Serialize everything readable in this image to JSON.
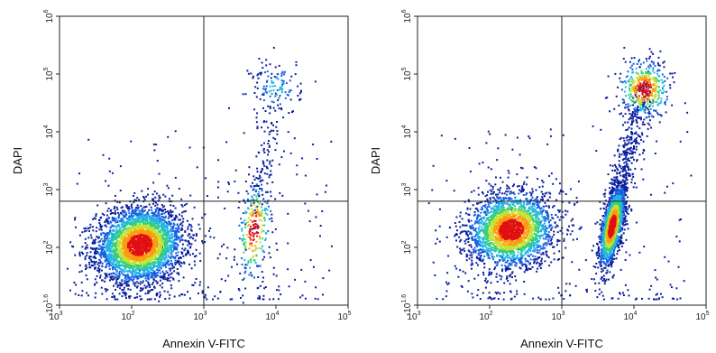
{
  "chart_data": [
    {
      "type": "scatter",
      "subtype": "flow-cytometry-density",
      "xlabel": "Annexin V-FITC",
      "ylabel": "DAPI",
      "x_scale": "log",
      "y_scale": "log",
      "xlim": [
        1000,
        100000
      ],
      "ylim": [
        -39.8,
        1000000
      ],
      "x_ticks": [
        {
          "base": "10",
          "exp": "3"
        },
        {
          "base": "10",
          "exp": "2"
        },
        {
          "base": "10",
          "exp": "3"
        },
        {
          "base": "10",
          "exp": "4"
        },
        {
          "base": "10",
          "exp": "5"
        }
      ],
      "y_ticks": [
        {
          "base": "-10",
          "exp": "1.6"
        },
        {
          "base": "10",
          "exp": "2"
        },
        {
          "base": "10",
          "exp": "3"
        },
        {
          "base": "10",
          "exp": "4"
        },
        {
          "base": "10",
          "exp": "5"
        },
        {
          "base": "10",
          "exp": "6"
        }
      ],
      "quadrant_gate": {
        "x": 1000,
        "y": 630
      },
      "populations": [
        {
          "center_x": 130,
          "center_y": 110,
          "count": 3600,
          "role": "main"
        },
        {
          "center_x": 10000,
          "center_y": 60000,
          "count": 120,
          "role": "upper-right"
        },
        {
          "center_x": 5000,
          "center_y": 200,
          "count": 250,
          "role": "lower-right"
        }
      ],
      "density_colors": [
        "#0a1f9e",
        "#1560e0",
        "#22b4e8",
        "#30d080",
        "#c8e030",
        "#ff9a10",
        "#e01010"
      ]
    },
    {
      "type": "scatter",
      "subtype": "flow-cytometry-density",
      "xlabel": "Annexin V-FITC",
      "ylabel": "DAPI",
      "x_scale": "log",
      "y_scale": "log",
      "xlim": [
        1000,
        100000
      ],
      "ylim": [
        -39.8,
        1000000
      ],
      "x_ticks": [
        {
          "base": "10",
          "exp": "3"
        },
        {
          "base": "10",
          "exp": "2"
        },
        {
          "base": "10",
          "exp": "3"
        },
        {
          "base": "10",
          "exp": "4"
        },
        {
          "base": "10",
          "exp": "5"
        }
      ],
      "y_ticks": [
        {
          "base": "-10",
          "exp": "1.6"
        },
        {
          "base": "10",
          "exp": "2"
        },
        {
          "base": "10",
          "exp": "3"
        },
        {
          "base": "10",
          "exp": "4"
        },
        {
          "base": "10",
          "exp": "5"
        },
        {
          "base": "10",
          "exp": "6"
        }
      ],
      "quadrant_gate": {
        "x": 1000,
        "y": 630
      },
      "populations": [
        {
          "center_x": 200,
          "center_y": 200,
          "count": 2600,
          "role": "main"
        },
        {
          "center_x": 5000,
          "center_y": 230,
          "count": 1700,
          "role": "lower-right"
        },
        {
          "center_x": 14000,
          "center_y": 55000,
          "count": 420,
          "role": "upper-right"
        }
      ],
      "density_colors": [
        "#0a1f9e",
        "#1560e0",
        "#22b4e8",
        "#30d080",
        "#c8e030",
        "#ff9a10",
        "#e01010"
      ]
    }
  ]
}
